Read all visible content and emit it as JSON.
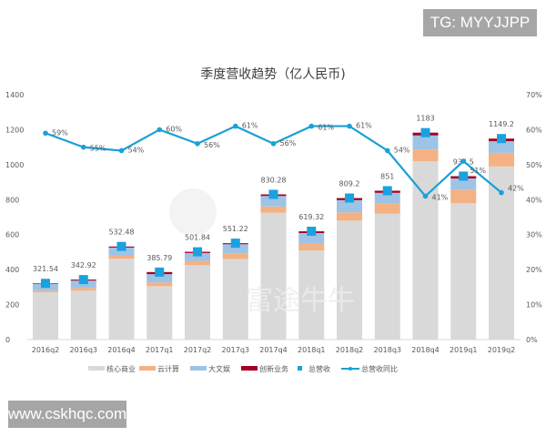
{
  "overlay": {
    "top_right_tag": "TG: MYYJJPP",
    "bottom_left_tag": "www.cskhqc.com",
    "watermark": "富途牛牛"
  },
  "chart_data": {
    "type": "bar",
    "title": "季度营收趋势（亿人民币)",
    "categories": [
      "2016q2",
      "2016q3",
      "2016q4",
      "2017q1",
      "2017q2",
      "2017q3",
      "2017q4",
      "2018q1",
      "2018q2",
      "2018q3",
      "2018q4",
      "2019q1",
      "2019q2"
    ],
    "stacked": true,
    "series": [
      {
        "name": "核心商业",
        "color": "#d9d9d9",
        "values": [
          270,
          280,
          462,
          305,
          425,
          460,
          725,
          510,
          680,
          720,
          1020,
          780,
          990
        ]
      },
      {
        "name": "云计算",
        "color": "#f4b183",
        "values": [
          10,
          15,
          17,
          22,
          25,
          30,
          36,
          37,
          47,
          57,
          67,
          77,
          78
        ]
      },
      {
        "name": "大文娱",
        "color": "#9dc3e6",
        "values": [
          38,
          42,
          47,
          47,
          45,
          55,
          60,
          62,
          70,
          62,
          80,
          64,
          66
        ]
      },
      {
        "name": "创新业务",
        "color": "#a50021",
        "values": [
          3.5,
          6,
          6,
          12,
          7,
          6,
          9,
          10,
          12,
          12,
          16,
          13,
          15
        ]
      }
    ],
    "total": {
      "name": "总营收",
      "color": "#1aa1e0",
      "values": [
        321.54,
        342.92,
        532.48,
        385.79,
        501.84,
        551.22,
        830.28,
        619.32,
        809.2,
        851,
        1183,
        934.5,
        1149.2
      ],
      "labels": [
        "321.54",
        "342.92",
        "532.48",
        "385.79",
        "501.84",
        "551.22",
        "830.28",
        "619.32",
        "809.2",
        "851",
        "1183",
        "934.5",
        "1149.2"
      ]
    },
    "yoy": {
      "name": "总营收同比",
      "color": "#1aa1d6",
      "axis": "right",
      "values": [
        59,
        55,
        54,
        60,
        56,
        61,
        56,
        61,
        61,
        54,
        41,
        51,
        42
      ],
      "labels": [
        "59%",
        "55%",
        "54%",
        "60%",
        "56%",
        "61%",
        "56%",
        "61%",
        "61%",
        "54%",
        "41%",
        "51%",
        "42%"
      ]
    },
    "ylim": [
      0,
      1400
    ],
    "yticks": [
      "0",
      "200",
      "400",
      "600",
      "800",
      "1000",
      "1200",
      "1400"
    ],
    "y2lim": [
      0,
      70
    ],
    "y2ticks": [
      "0%",
      "10%",
      "20%",
      "30%",
      "40%",
      "50%",
      "60%",
      "70%"
    ],
    "grid": false,
    "legend": "bottom"
  }
}
